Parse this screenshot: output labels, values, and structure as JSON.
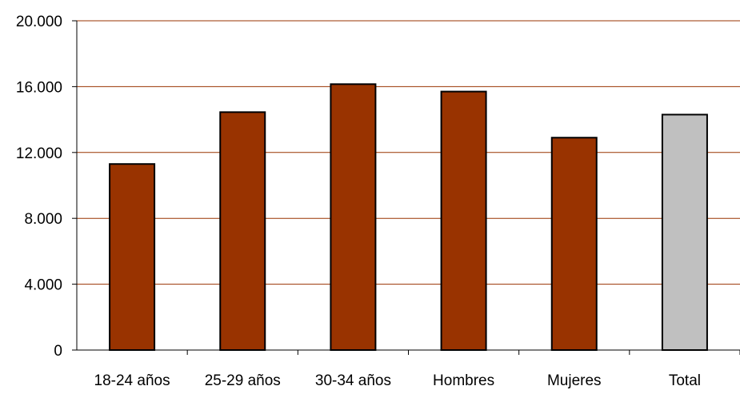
{
  "chart_data": {
    "type": "bar",
    "categories": [
      "18-24 años",
      "25-29 años",
      "30-34 años",
      "Hombres",
      "Mujeres",
      "Total"
    ],
    "values": [
      11300,
      14450,
      16150,
      15700,
      12900,
      14300
    ],
    "ylim": [
      0,
      20000
    ],
    "yticks": [
      0,
      4000,
      8000,
      12000,
      16000,
      20000
    ],
    "ytick_labels": [
      "0",
      "4.000",
      "8.000",
      "12.000",
      "16.000",
      "20.000"
    ],
    "grid": true,
    "legend": "none",
    "colors": {
      "bar": "#993300",
      "highlight_bar": "#C0C0C0",
      "highlight_category": "Total",
      "gridline": "#993300",
      "outline": "#000000"
    }
  }
}
